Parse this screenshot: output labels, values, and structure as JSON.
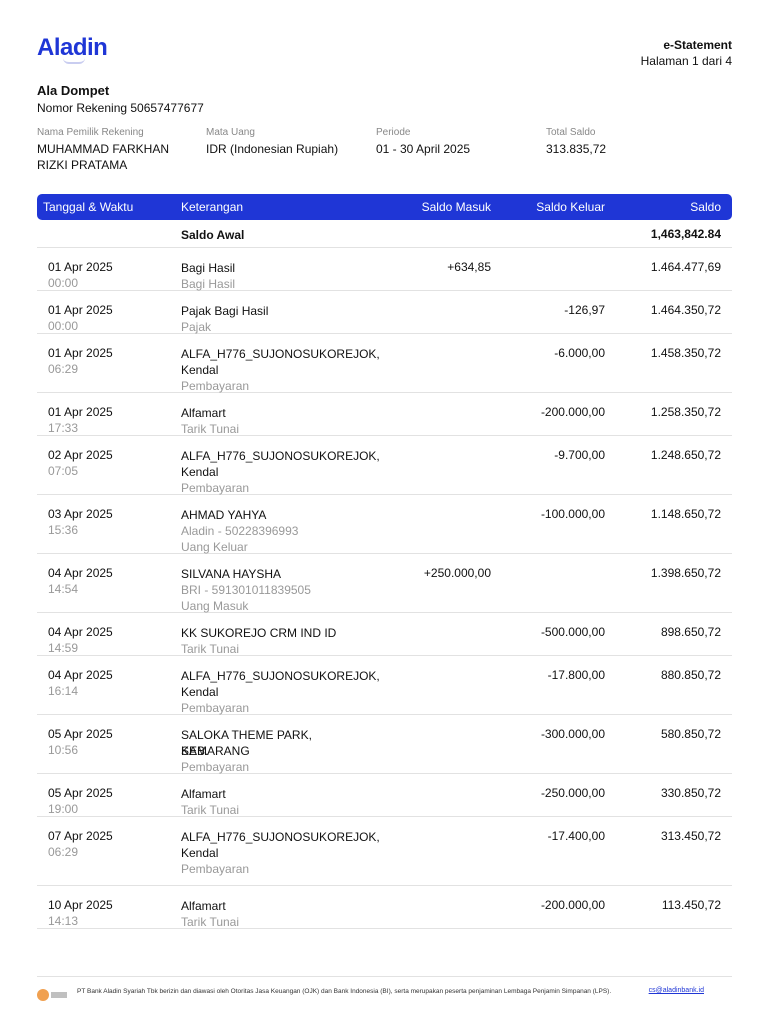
{
  "header": {
    "logo_text": "Aladin",
    "doc_title": "e-Statement",
    "page_label": "Halaman 1 dari 4"
  },
  "account": {
    "name": "Ala Dompet",
    "number_label": "Nomor Rekening 50657477677"
  },
  "meta": [
    {
      "label": "Nama Pemilik Rekening",
      "value": "MUHAMMAD FARKHAN RIZKI PRATAMA"
    },
    {
      "label": "Mata Uang",
      "value": "IDR (Indonesian Rupiah)"
    },
    {
      "label": "Periode",
      "value": "01 - 30 April 2025"
    },
    {
      "label": "Total Saldo",
      "value": "313.835,72"
    }
  ],
  "table": {
    "headers": {
      "date": "Tanggal & Waktu",
      "desc": "Keterangan",
      "in": "Saldo Masuk",
      "out": "Saldo Keluar",
      "balance": "Saldo"
    },
    "opening": {
      "label": "Saldo Awal",
      "balance": "1,463,842.84"
    },
    "rows": [
      {
        "date": "01 Apr 2025",
        "time": "00:00",
        "desc": "Bagi Hasil",
        "desc2": "",
        "sub": "Bagi Hasil",
        "in": "+634,85",
        "out": "",
        "balance": "1.464.477,69"
      },
      {
        "date": "01 Apr 2025",
        "time": "00:00",
        "desc": "Pajak Bagi Hasil",
        "desc2": "",
        "sub": "Pajak",
        "in": "",
        "out": "-126,97",
        "balance": "1.464.350,72"
      },
      {
        "date": "01 Apr 2025",
        "time": "06:29",
        "desc": "ALFA_H776_SUJONOSUKOREJOK,",
        "desc2": "Kendal",
        "sub": "Pembayaran",
        "in": "",
        "out": "-6.000,00",
        "balance": "1.458.350,72"
      },
      {
        "date": "01 Apr 2025",
        "time": "17:33",
        "desc": "Alfamart",
        "desc2": "",
        "sub": "Tarik Tunai",
        "in": "",
        "out": "-200.000,00",
        "balance": "1.258.350,72"
      },
      {
        "date": "02 Apr 2025",
        "time": "07:05",
        "desc": "ALFA_H776_SUJONOSUKOREJOK,",
        "desc2": "Kendal",
        "sub": "Pembayaran",
        "in": "",
        "out": "-9.700,00",
        "balance": "1.248.650,72"
      },
      {
        "date": "03 Apr 2025",
        "time": "15:36",
        "desc": "AHMAD YAHYA",
        "desc2": "Aladin - 50228396993",
        "desc2_muted": true,
        "sub": "Uang Keluar",
        "in": "",
        "out": "-100.000,00",
        "balance": "1.148.650,72"
      },
      {
        "date": "04 Apr 2025",
        "time": "14:54",
        "desc": "SILVANA HAYSHA",
        "desc2": "BRI - 591301011839505",
        "desc2_muted": true,
        "sub": "Uang Masuk",
        "in": "+250.000,00",
        "out": "",
        "balance": "1.398.650,72"
      },
      {
        "date": "04 Apr 2025",
        "time": "14:59",
        "desc": "KK SUKOREJO CRM IND ID",
        "desc2": "",
        "sub": "Tarik Tunai",
        "in": "",
        "out": "-500.000,00",
        "balance": "898.650,72"
      },
      {
        "date": "04 Apr 2025",
        "time": "16:14",
        "desc": "ALFA_H776_SUJONOSUKOREJOK,",
        "desc2": "Kendal",
        "sub": "Pembayaran",
        "in": "",
        "out": "-17.800,00",
        "balance": "880.850,72"
      },
      {
        "date": "05 Apr 2025",
        "time": "10:56",
        "desc": "SALOKA THEME PARK, SEMARANG",
        "desc2": "KAB.",
        "sub": "Pembayaran",
        "in": "",
        "out": "-300.000,00",
        "balance": "580.850,72"
      },
      {
        "date": "05 Apr 2025",
        "time": "19:00",
        "desc": "Alfamart",
        "desc2": "",
        "sub": "Tarik Tunai",
        "in": "",
        "out": "-250.000,00",
        "balance": "330.850,72"
      },
      {
        "date": "07 Apr 2025",
        "time": "06:29",
        "desc": "ALFA_H776_SUJONOSUKOREJOK,",
        "desc2": "Kendal",
        "sub": "Pembayaran",
        "in": "",
        "out": "-17.400,00",
        "balance": "313.450,72"
      },
      {
        "date": "10 Apr 2025",
        "time": "14:13",
        "desc": "Alfamart",
        "desc2": "",
        "sub": "Tarik Tunai",
        "in": "",
        "out": "-200.000,00",
        "balance": "113.450,72"
      }
    ]
  },
  "footer": {
    "text": "PT Bank Aladin Syariah Tbk berizin dan diawasi oleh Otoritas Jasa Keuangan (OJK) dan Bank Indonesia (BI), serta merupakan peserta penjaminan Lembaga Penjamin Simpanan (LPS).",
    "email": "cs@aladinbank.id"
  }
}
